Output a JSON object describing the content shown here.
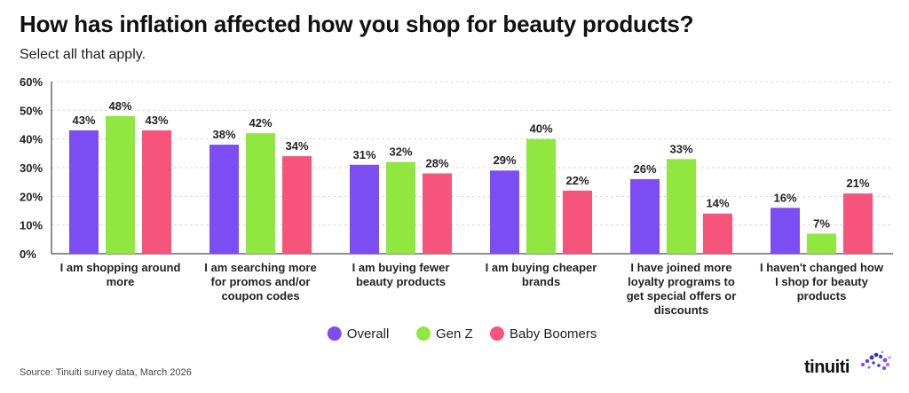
{
  "header": {
    "title": "How has inflation affected how you shop for beauty products?",
    "subtitle": "Select all that apply."
  },
  "footer": {
    "source": "Source: Tinuiti survey data, March 2026",
    "brand": "tinuiti"
  },
  "colors": {
    "Overall": "#7b4df2",
    "Gen Z": "#90e73f",
    "Baby Boomers": "#f6547a",
    "grid": "#d9d9d9",
    "axis": "#222222"
  },
  "chart_data": {
    "type": "bar",
    "categories": [
      [
        "I am shopping around",
        "more"
      ],
      [
        "I am searching more",
        "for promos and/or",
        "coupon codes"
      ],
      [
        "I am buying fewer",
        "beauty products"
      ],
      [
        "I am buying cheaper",
        "brands"
      ],
      [
        "I have joined more",
        "loyalty programs to",
        "get special offers or",
        "discounts"
      ],
      [
        "I haven't changed how",
        "I shop for beauty",
        "products"
      ]
    ],
    "series": [
      {
        "name": "Overall",
        "values": [
          43,
          38,
          31,
          29,
          26,
          16
        ]
      },
      {
        "name": "Gen Z",
        "values": [
          48,
          42,
          32,
          40,
          33,
          7
        ]
      },
      {
        "name": "Baby Boomers",
        "values": [
          43,
          34,
          28,
          22,
          14,
          21
        ]
      }
    ],
    "ylim": [
      0,
      60
    ],
    "yticks": [
      0,
      10,
      20,
      30,
      40,
      50,
      60
    ],
    "ytick_format": "%",
    "grid": true,
    "legend": "bottom-center"
  }
}
